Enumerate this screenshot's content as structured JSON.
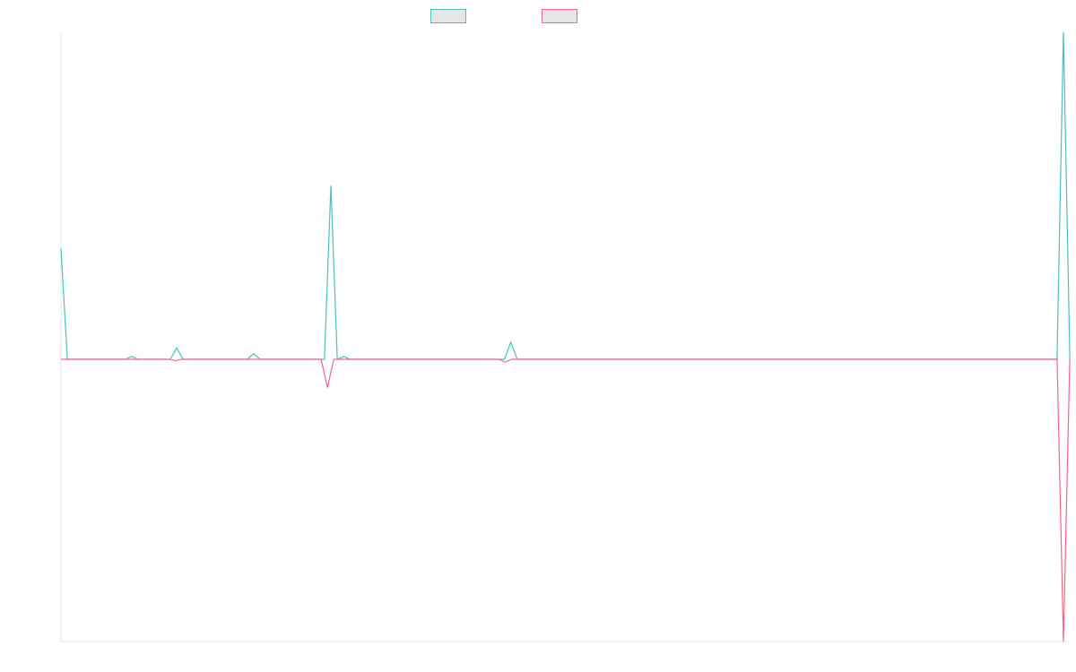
{
  "chart_data": {
    "type": "line",
    "title": "",
    "xlabel": "",
    "ylabel": "",
    "x_ticks_visible": false,
    "y_ticks_visible": false,
    "grid": false,
    "legend_position": "top-center",
    "ylim": [
      -100,
      115
    ],
    "series": [
      {
        "name": "",
        "color": "#4bc0c0",
        "values": [
          39,
          0,
          0,
          0,
          0,
          0,
          0,
          0,
          0,
          0,
          0,
          1,
          0,
          0,
          0,
          0,
          0,
          0,
          4,
          0,
          0,
          0,
          0,
          0,
          0,
          0,
          0,
          0,
          0,
          0,
          2,
          0,
          0,
          0,
          0,
          0,
          0,
          0,
          0,
          0,
          0,
          0,
          61,
          0,
          1,
          0,
          0,
          0,
          0,
          0,
          0,
          0,
          0,
          0,
          0,
          0,
          0,
          0,
          0,
          0,
          0,
          0,
          0,
          0,
          0,
          0,
          0,
          0,
          0,
          0,
          6,
          0,
          0,
          0,
          0,
          0,
          0,
          0,
          0,
          0,
          0,
          0,
          0,
          0,
          0,
          0,
          0,
          0,
          0,
          0,
          0,
          0,
          0,
          0,
          0,
          0,
          0,
          0,
          0,
          0,
          0,
          0,
          0,
          0,
          0,
          0,
          0,
          0,
          0,
          0,
          0,
          0,
          0,
          0,
          0,
          0,
          0,
          0,
          0,
          0,
          0,
          0,
          0,
          0,
          0,
          0,
          0,
          0,
          0,
          0,
          0,
          0,
          0,
          0,
          0,
          0,
          0,
          0,
          0,
          0,
          0,
          0,
          0,
          0,
          0,
          0,
          0,
          0,
          0,
          0,
          0,
          0,
          0,
          0,
          0,
          0,
          115,
          0
        ]
      },
      {
        "name": "",
        "color": "#ff6384",
        "values": [
          0,
          0,
          0,
          0,
          0,
          0,
          0,
          0,
          0,
          0,
          0,
          0,
          0,
          0,
          0,
          0,
          0,
          0,
          -0.5,
          0,
          0,
          0,
          0,
          0,
          0,
          0,
          0,
          0,
          0,
          0,
          0,
          0,
          0,
          0,
          0,
          0,
          0,
          0,
          0,
          0,
          0,
          0,
          -10,
          0,
          0,
          0,
          0,
          0,
          0,
          0,
          0,
          0,
          0,
          0,
          0,
          0,
          0,
          0,
          0,
          0,
          0,
          0,
          0,
          0,
          0,
          0,
          0,
          0,
          0,
          0,
          -1,
          0,
          0,
          0,
          0,
          0,
          0,
          0,
          0,
          0,
          0,
          0,
          0,
          0,
          0,
          0,
          0,
          0,
          0,
          0,
          0,
          0,
          0,
          0,
          0,
          0,
          0,
          0,
          0,
          0,
          0,
          0,
          0,
          0,
          0,
          0,
          0,
          0,
          0,
          0,
          0,
          0,
          0,
          0,
          0,
          0,
          0,
          0,
          0,
          0,
          0,
          0,
          0,
          0,
          0,
          0,
          0,
          0,
          0,
          0,
          0,
          0,
          0,
          0,
          0,
          0,
          0,
          0,
          0,
          0,
          0,
          0,
          0,
          0,
          0,
          0,
          0,
          0,
          0,
          0,
          0,
          0,
          0,
          0,
          0,
          0,
          0,
          0,
          -100,
          0
        ]
      }
    ]
  }
}
